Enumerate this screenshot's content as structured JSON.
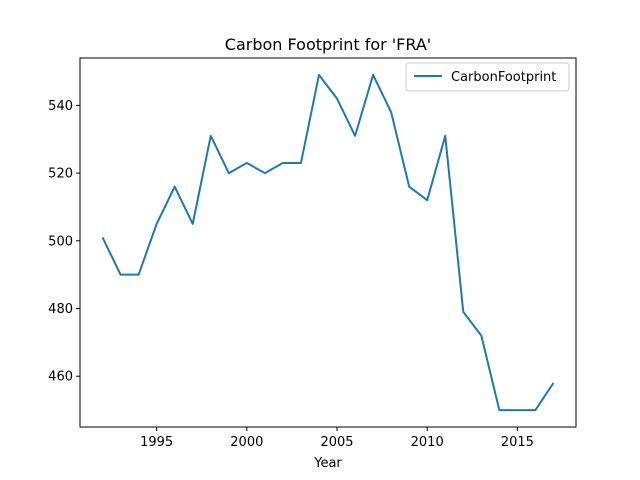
{
  "chart_data": {
    "type": "line",
    "title": "Carbon Footprint for 'FRA'",
    "xlabel": "Year",
    "ylabel": "",
    "xlim": [
      1990.75,
      2018.25
    ],
    "ylim": [
      445,
      554
    ],
    "x_ticks": [
      1995,
      2000,
      2005,
      2010,
      2015
    ],
    "y_ticks": [
      460,
      480,
      500,
      520,
      540
    ],
    "grid": false,
    "legend": {
      "position": "top-right"
    },
    "series": [
      {
        "name": "CarbonFootprint",
        "color": "#1f77b4",
        "x": [
          1992,
          1993,
          1994,
          1995,
          1996,
          1997,
          1998,
          1999,
          2000,
          2001,
          2002,
          2003,
          2004,
          2005,
          2006,
          2007,
          2008,
          2009,
          2010,
          2011,
          2012,
          2013,
          2014,
          2015,
          2016,
          2017
        ],
        "y": [
          501,
          490,
          490,
          505,
          516,
          505,
          531,
          520,
          523,
          520,
          523,
          523,
          549,
          542,
          531,
          549,
          538,
          516,
          512,
          531,
          479,
          472,
          450,
          450,
          450,
          458
        ]
      }
    ]
  }
}
